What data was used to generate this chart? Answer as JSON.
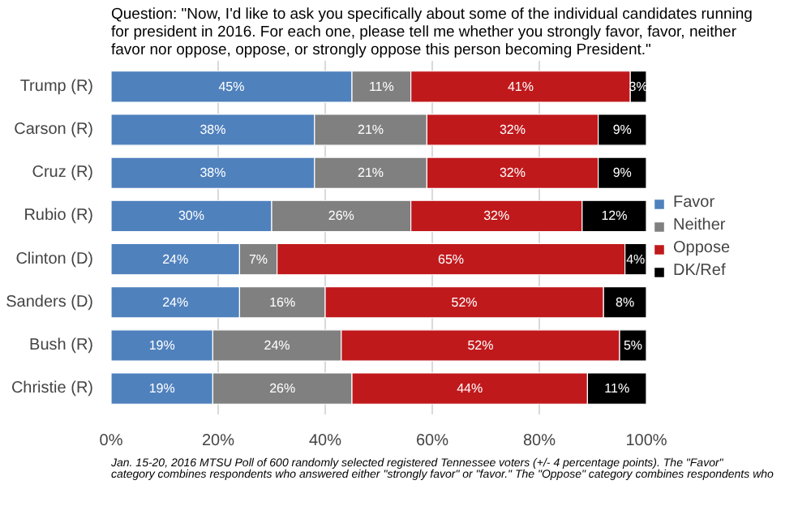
{
  "chart_data": {
    "type": "bar",
    "orientation": "horizontal",
    "stacked": true,
    "title": "Question: \"Now, I'd like to ask you specifically about some of the individual candidates running for president in 2016. For each one, please tell me whether you strongly favor, favor, neither favor nor oppose, oppose, or strongly oppose this person becoming President.\"",
    "categories": [
      "Trump (R)",
      "Carson (R)",
      "Cruz (R)",
      "Rubio (R)",
      "Clinton (D)",
      "Sanders (D)",
      "Bush (R)",
      "Christie (R)"
    ],
    "series": [
      {
        "name": "Favor",
        "color": "#4f81bd",
        "values": [
          45,
          38,
          38,
          30,
          24,
          24,
          19,
          19
        ],
        "value_labels": [
          "45%",
          "38%",
          "38%",
          "30%",
          "24%",
          "24%",
          "19%",
          "19%"
        ]
      },
      {
        "name": "Neither",
        "color": "#808080",
        "values": [
          11,
          21,
          21,
          26,
          7,
          16,
          24,
          26
        ],
        "value_labels": [
          "11%",
          "21%",
          "21%",
          "26%",
          "7%",
          "16%",
          "24%",
          "26%"
        ]
      },
      {
        "name": "Oppose",
        "color": "#c0191c",
        "values": [
          41,
          32,
          32,
          32,
          65,
          52,
          52,
          44
        ],
        "value_labels": [
          "41%",
          "32%",
          "32%",
          "32%",
          "65%",
          "52%",
          "52%",
          "44%"
        ]
      },
      {
        "name": "DK/Ref",
        "color": "#000000",
        "values": [
          3,
          9,
          9,
          12,
          4,
          8,
          5,
          11
        ],
        "value_labels": [
          "3%",
          "9%",
          "9%",
          "12%",
          "4%",
          "8%",
          "5%",
          "11%"
        ]
      }
    ],
    "xlim": [
      0,
      100
    ],
    "xticks": [
      {
        "value": 0,
        "label": "0%"
      },
      {
        "value": 20,
        "label": "20%"
      },
      {
        "value": 40,
        "label": "40%"
      },
      {
        "value": 60,
        "label": "60%"
      },
      {
        "value": 80,
        "label": "80%"
      },
      {
        "value": 100,
        "label": "100%"
      }
    ],
    "grid": "x",
    "legend": "right",
    "annotations": [
      "Jan. 15-20, 2016 MTSU Poll of 600 randomly selected registered Tennessee voters (+/- 4 percentage points). The \"Favor\" category combines respondents who answered either \"strongly favor\" or \"favor.\" The \"Oppose\" category combines respondents who"
    ]
  }
}
